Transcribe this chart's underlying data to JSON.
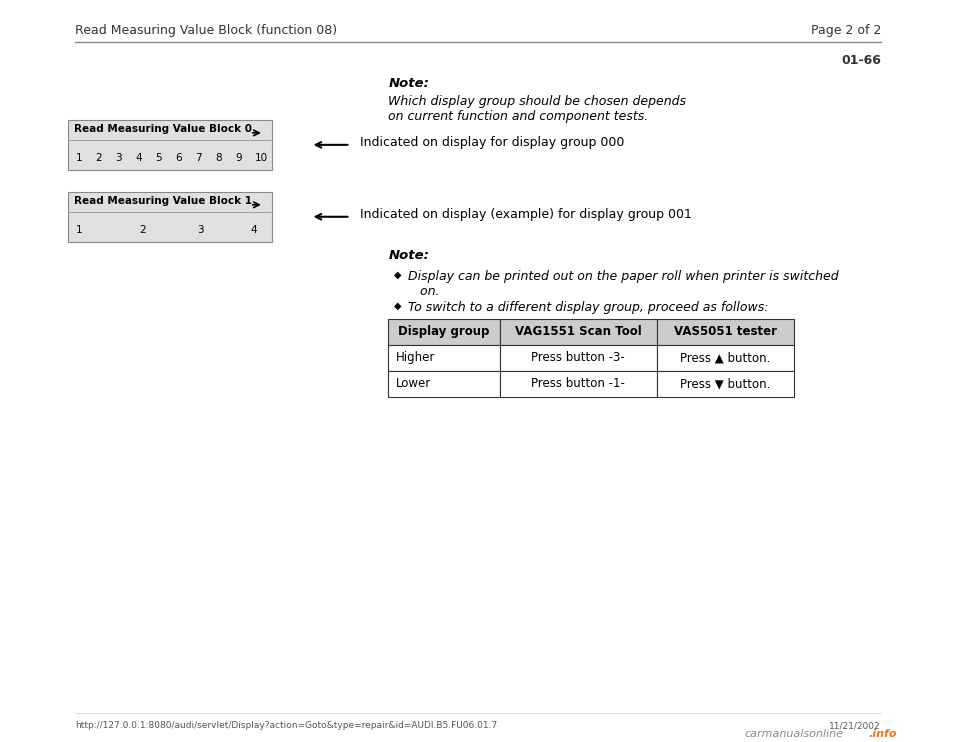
{
  "bg_color": "#ffffff",
  "header_text": "Read Measuring Value Block (function 08)",
  "header_page": "Page 2 of 2",
  "page_num": "01-66",
  "footer_url": "http://127.0.0.1:8080/audi/servlet/Display?action=Goto&type=repair&id=AUDI.B5.FU06.01.7",
  "footer_date": "11/21/2002",
  "note_bold": "Note:",
  "note_italic_1": "Which display group should be chosen depends",
  "note_italic_2": "on current function and component tests.",
  "block0_title": "Read Measuring Value Block 0",
  "block1_title": "Read Measuring Value Block 1",
  "arrow_label0": "Indicated on display for display group 000",
  "arrow_label1": "Indicated on display (example) for display group 001",
  "note2_bold": "Note:",
  "bullet1_line1": "Display can be printed out on the paper roll when printer is switched",
  "bullet1_line2": "   on.",
  "bullet2": "To switch to a different display group, proceed as follows:",
  "table_headers": [
    "Display group",
    "VAG1551 Scan Tool",
    "VAS5051 tester"
  ],
  "table_row1_col0": "Higher",
  "table_row1_col1": "Press button -3-",
  "table_row1_col2": "Press ▲ button.",
  "table_row2_col0": "Lower",
  "table_row2_col1": "Press button -1-",
  "table_row2_col2": "Press ▼ button.",
  "gray_box_color": "#e0e0e0",
  "table_header_bg": "#cccccc"
}
